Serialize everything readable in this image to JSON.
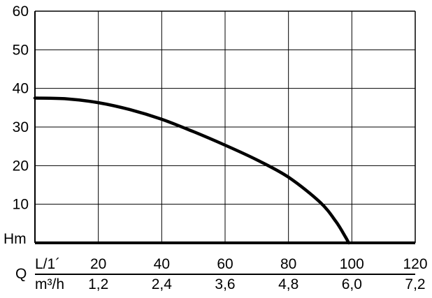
{
  "chart_data": {
    "type": "line",
    "title": "",
    "ylabel": "Hm",
    "xlabel": "Q",
    "ylim": [
      0,
      60
    ],
    "xlim": [
      0,
      120
    ],
    "grid": true,
    "y_ticks": [
      "10",
      "20",
      "30",
      "40",
      "50",
      "60"
    ],
    "x_axis_rows": [
      {
        "unit": "L/1´",
        "ticks": [
          "20",
          "40",
          "60",
          "80",
          "100",
          "120"
        ]
      },
      {
        "unit": "m³/h",
        "ticks": [
          "1,2",
          "2,4",
          "3,6",
          "4,8",
          "6,0",
          "7,2"
        ]
      }
    ],
    "series": [
      {
        "values": [
          [
            0,
            37.5
          ],
          [
            10,
            37.3
          ],
          [
            20,
            36.3
          ],
          [
            30,
            34.5
          ],
          [
            40,
            32.0
          ],
          [
            50,
            28.8
          ],
          [
            60,
            25.3
          ],
          [
            70,
            21.5
          ],
          [
            80,
            17.0
          ],
          [
            90,
            10.5
          ],
          [
            95,
            5.5
          ],
          [
            98,
            1.5
          ],
          [
            99,
            0
          ]
        ]
      }
    ]
  }
}
